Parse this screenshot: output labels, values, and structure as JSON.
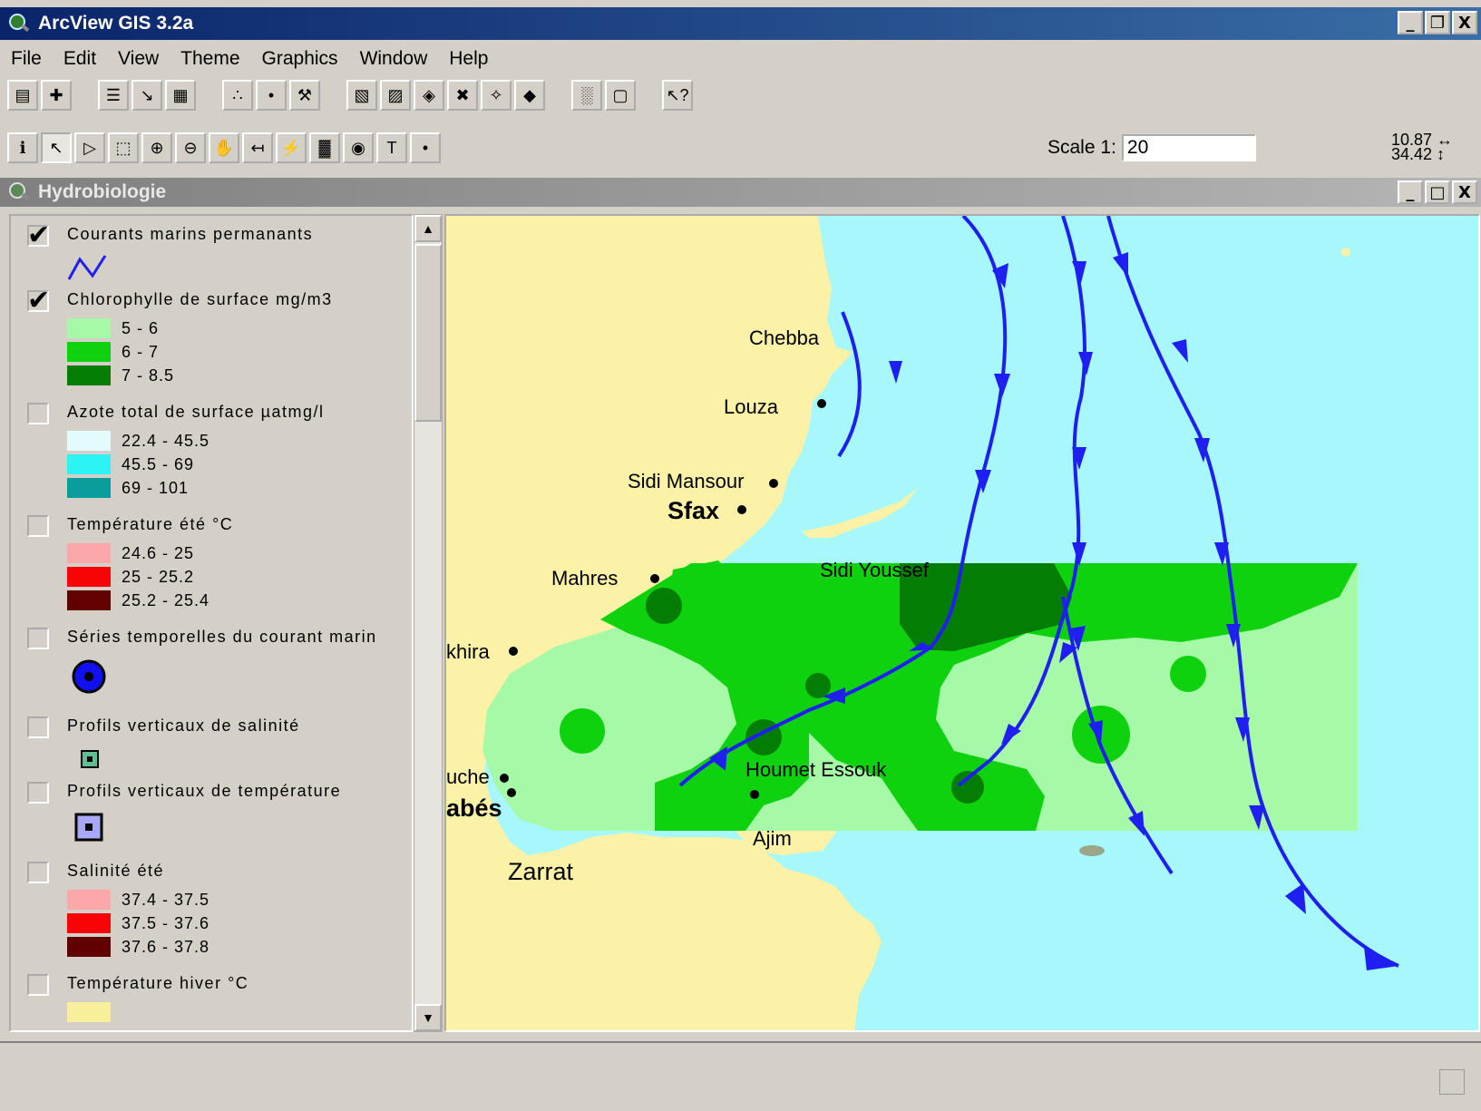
{
  "app": {
    "title": "ArcView GIS 3.2a",
    "window_buttons": [
      "_",
      "❐",
      "X"
    ]
  },
  "menu": [
    {
      "key": "file",
      "label": "File"
    },
    {
      "key": "edit",
      "label": "Edit"
    },
    {
      "key": "view",
      "label": "View"
    },
    {
      "key": "theme",
      "label": "Theme"
    },
    {
      "key": "graphics",
      "label": "Graphics"
    },
    {
      "key": "window",
      "label": "Window"
    },
    {
      "key": "help",
      "label": "Help"
    }
  ],
  "toolbar": {
    "buttons": [
      {
        "name": "save-icon",
        "glyph": "▤"
      },
      {
        "name": "add-theme-icon",
        "glyph": "✚"
      },
      {
        "name": "theme-properties-icon",
        "glyph": "☰"
      },
      {
        "name": "edit-legend-icon",
        "glyph": "↘"
      },
      {
        "name": "open-table-icon",
        "glyph": "▦"
      },
      {
        "name": "find-icon",
        "glyph": "∴"
      },
      {
        "name": "locate-address-icon",
        "glyph": "•"
      },
      {
        "name": "query-builder-icon",
        "glyph": "⚒"
      },
      {
        "name": "zoom-full-extent-icon",
        "glyph": "▧"
      },
      {
        "name": "zoom-active-themes-icon",
        "glyph": "▨"
      },
      {
        "name": "zoom-selected-icon",
        "glyph": "◈"
      },
      {
        "name": "zoom-in-center-icon",
        "glyph": "✖"
      },
      {
        "name": "zoom-out-center-icon",
        "glyph": "✧"
      },
      {
        "name": "zoom-previous-icon",
        "glyph": "◆"
      },
      {
        "name": "select-by-theme-icon",
        "glyph": "░"
      },
      {
        "name": "clear-selection-icon",
        "glyph": "▢"
      },
      {
        "name": "help-icon",
        "glyph": "↖?"
      }
    ],
    "groups_after": [
      1,
      4,
      7,
      13,
      15
    ],
    "tools": [
      {
        "name": "identify-icon",
        "glyph": "ℹ"
      },
      {
        "name": "pointer-icon",
        "glyph": "↖"
      },
      {
        "name": "vertex-edit-icon",
        "glyph": "▷"
      },
      {
        "name": "select-feature-icon",
        "glyph": "⬚"
      },
      {
        "name": "zoom-in-icon",
        "glyph": "⊕"
      },
      {
        "name": "zoom-out-icon",
        "glyph": "⊖"
      },
      {
        "name": "pan-icon",
        "glyph": "✋"
      },
      {
        "name": "measure-icon",
        "glyph": "↤"
      },
      {
        "name": "hotlink-icon",
        "glyph": "⚡"
      },
      {
        "name": "area-of-interest-icon",
        "glyph": "▓"
      },
      {
        "name": "label-icon",
        "glyph": "◉"
      },
      {
        "name": "text-icon",
        "glyph": "T"
      },
      {
        "name": "draw-point-icon",
        "glyph": "•"
      }
    ],
    "pressed_tool": 1
  },
  "scale": {
    "label": "Scale 1:",
    "value": "20"
  },
  "coords": {
    "x": "10.87",
    "y": "34.42",
    "x_arrow": "↔",
    "y_arrow": "↕"
  },
  "view": {
    "title": "Hydrobiologie"
  },
  "legend": [
    {
      "key": "courants",
      "name": "Courants marins permanants",
      "checked": true,
      "symbol": "line",
      "color": "#1f1ff2"
    },
    {
      "key": "chloro",
      "name": "Chlorophylle de surface  mg/m3",
      "checked": true,
      "classes": [
        {
          "label": "5 - 6",
          "color": "#a6f9a6"
        },
        {
          "label": "6 - 7",
          "color": "#0fd20f"
        },
        {
          "label": "7 - 8.5",
          "color": "#047d04"
        }
      ]
    },
    {
      "key": "azote",
      "name": "Azote total de surface µatmg/l",
      "checked": false,
      "classes": [
        {
          "label": "22.4 - 45.5",
          "color": "#e4fbfb"
        },
        {
          "label": "45.5 - 69",
          "color": "#2cf4f4"
        },
        {
          "label": "69 - 101",
          "color": "#0b9c9c"
        }
      ]
    },
    {
      "key": "temp_ete",
      "name": "Température été °C",
      "checked": false,
      "classes": [
        {
          "label": "24.6 - 25",
          "color": "#fda8a8"
        },
        {
          "label": "25 - 25.2",
          "color": "#f80404"
        },
        {
          "label": "25.2 - 25.4",
          "color": "#620000"
        }
      ]
    },
    {
      "key": "series",
      "name": "Séries temporelles du courant marin",
      "checked": false,
      "symbol": "circle",
      "color": "#1010f0"
    },
    {
      "key": "salinite_prof",
      "name": "Profils verticaux de salinité",
      "checked": false,
      "symbol": "small-square",
      "color": "#5fbf8f"
    },
    {
      "key": "temp_prof",
      "name": "Profils verticaux de température",
      "checked": false,
      "symbol": "square",
      "color": "#a8a8f8"
    },
    {
      "key": "salinite",
      "name": "Salinité été",
      "checked": false,
      "classes": [
        {
          "label": "37.4 - 37.5",
          "color": "#fda8a8"
        },
        {
          "label": "37.5 - 37.6",
          "color": "#f80404"
        },
        {
          "label": "37.6 - 37.8",
          "color": "#620000"
        }
      ]
    },
    {
      "key": "temp_hiver",
      "name": "Température hiver °C",
      "checked": false,
      "classes": [
        {
          "label": "",
          "color": "#f7ef9a"
        }
      ]
    }
  ],
  "map": {
    "colors": {
      "sea": "#a6f8fd",
      "land": "#fbf2a8",
      "light_green": "#a6f9a6",
      "green": "#0fd20f",
      "dark_green": "#047d04",
      "current": "#1f1ff2"
    },
    "place_labels": {
      "chebba": "Chebba",
      "louza": "Louza",
      "sidi_mansour": "Sidi Mansour",
      "sfax": "Sfax",
      "mahres": "Mahres",
      "sidi_youssef": "Sidi Youssef",
      "skhira": "khira",
      "gouche": "uche",
      "gabes": "abés",
      "houmet_essouk": "Houmet Essouk",
      "ajim": "Ajim",
      "zarrat": "Zarrat"
    }
  },
  "status": {
    "text": ""
  }
}
